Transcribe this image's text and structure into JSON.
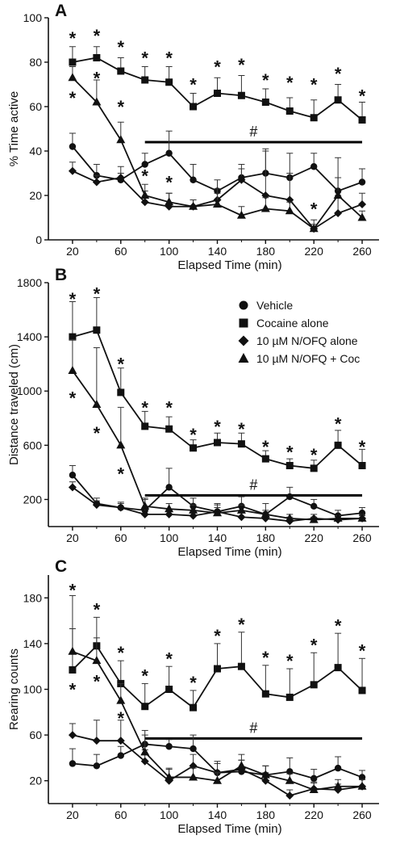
{
  "chart_data": [
    {
      "type": "line",
      "panel_label": "A",
      "xlabel": "Elapsed Time (min)",
      "ylabel": "% Time active",
      "x": [
        20,
        40,
        60,
        80,
        100,
        120,
        140,
        160,
        180,
        200,
        220,
        240,
        260
      ],
      "x_ticks": [
        "20",
        "60",
        "100",
        "140",
        "180",
        "220",
        "260"
      ],
      "y_ticks": [
        "0",
        "20",
        "40",
        "60",
        "80",
        "100"
      ],
      "xlim": [
        0,
        274
      ],
      "ylim": [
        0,
        100
      ],
      "series": [
        {
          "marker": "circle",
          "values": [
            42,
            29,
            27,
            34,
            39,
            27,
            22,
            28,
            30,
            28,
            33,
            22,
            26
          ],
          "errors": [
            6,
            5,
            3,
            5,
            10,
            7,
            5,
            6,
            11,
            11,
            6,
            15,
            6
          ]
        },
        {
          "marker": "square",
          "values": [
            80,
            82,
            76,
            72,
            71,
            60,
            66,
            65,
            62,
            58,
            55,
            63,
            54
          ],
          "errors": [
            7,
            5,
            6,
            6,
            7,
            6,
            7,
            9,
            6,
            6,
            8,
            7,
            8
          ]
        },
        {
          "marker": "diamond",
          "values": [
            31,
            26,
            28,
            17,
            15,
            15,
            18,
            27,
            20,
            18,
            5,
            12,
            16
          ],
          "errors": [
            4,
            3,
            5,
            5,
            6,
            3,
            5,
            5,
            20,
            12,
            4,
            8,
            5
          ]
        },
        {
          "marker": "triangle",
          "values": [
            73,
            62,
            45,
            20,
            17,
            15,
            16,
            11,
            14,
            13,
            5,
            20,
            10
          ],
          "errors": [
            5,
            10,
            8,
            5,
            4,
            3,
            5,
            4,
            5,
            4,
            2,
            8,
            3
          ]
        }
      ],
      "asterisks": [
        {
          "x": 20,
          "y": 91
        },
        {
          "x": 40,
          "y": 92
        },
        {
          "x": 60,
          "y": 87
        },
        {
          "x": 80,
          "y": 82
        },
        {
          "x": 100,
          "y": 82
        },
        {
          "x": 120,
          "y": 70
        },
        {
          "x": 140,
          "y": 78
        },
        {
          "x": 160,
          "y": 79
        },
        {
          "x": 180,
          "y": 72
        },
        {
          "x": 200,
          "y": 71
        },
        {
          "x": 220,
          "y": 70
        },
        {
          "x": 240,
          "y": 75
        },
        {
          "x": 260,
          "y": 65
        },
        {
          "x": 20,
          "y": 64
        },
        {
          "x": 40,
          "y": 73
        },
        {
          "x": 60,
          "y": 60
        },
        {
          "x": 80,
          "y": 29
        },
        {
          "x": 100,
          "y": 26
        },
        {
          "x": 220,
          "y": 14
        }
      ],
      "bar": {
        "x_start": 80,
        "x_end": 260,
        "y": 44,
        "label": "#",
        "label_x": 170
      }
    },
    {
      "type": "line",
      "panel_label": "B",
      "xlabel": "Elapsed Time (min)",
      "ylabel": "Distance traveled (cm)",
      "x": [
        20,
        40,
        60,
        80,
        100,
        120,
        140,
        160,
        180,
        200,
        220,
        240,
        260
      ],
      "x_ticks": [
        "20",
        "60",
        "100",
        "140",
        "180",
        "220",
        "260"
      ],
      "y_ticks": [
        "200",
        "600",
        "1000",
        "1400",
        "1800"
      ],
      "y_tick_values": [
        200,
        600,
        1000,
        1400,
        1800
      ],
      "xlim": [
        0,
        274
      ],
      "ylim": [
        0,
        1800
      ],
      "legend": [
        "Vehicle",
        "Cocaine alone",
        "10 µM N/OFQ alone",
        "10 µM N/OFQ + Coc"
      ],
      "series": [
        {
          "marker": "circle",
          "values": [
            380,
            170,
            140,
            120,
            290,
            150,
            110,
            150,
            90,
            220,
            150,
            80,
            100
          ],
          "errors": [
            70,
            40,
            40,
            80,
            140,
            60,
            60,
            70,
            80,
            70,
            50,
            40,
            40
          ]
        },
        {
          "marker": "square",
          "values": [
            1400,
            1450,
            990,
            740,
            720,
            580,
            620,
            610,
            500,
            450,
            430,
            600,
            450
          ],
          "errors": [
            260,
            240,
            180,
            110,
            90,
            60,
            70,
            80,
            60,
            50,
            60,
            110,
            120
          ]
        },
        {
          "marker": "diamond",
          "values": [
            290,
            160,
            140,
            90,
            90,
            80,
            110,
            70,
            60,
            40,
            60,
            50,
            60
          ],
          "errors": [
            40,
            30,
            30,
            40,
            30,
            30,
            50,
            40,
            40,
            30,
            30,
            30,
            30
          ]
        },
        {
          "marker": "triangle",
          "values": [
            1150,
            900,
            600,
            150,
            130,
            120,
            100,
            120,
            90,
            60,
            50,
            60,
            60
          ],
          "errors": [
            230,
            420,
            280,
            60,
            40,
            40,
            40,
            40,
            30,
            30,
            20,
            20,
            20
          ]
        }
      ],
      "asterisks": [
        {
          "x": 20,
          "y": 1680
        },
        {
          "x": 40,
          "y": 1720
        },
        {
          "x": 60,
          "y": 1200
        },
        {
          "x": 80,
          "y": 880
        },
        {
          "x": 100,
          "y": 880
        },
        {
          "x": 120,
          "y": 680
        },
        {
          "x": 140,
          "y": 740
        },
        {
          "x": 160,
          "y": 720
        },
        {
          "x": 180,
          "y": 590
        },
        {
          "x": 200,
          "y": 550
        },
        {
          "x": 220,
          "y": 530
        },
        {
          "x": 240,
          "y": 760
        },
        {
          "x": 260,
          "y": 590
        },
        {
          "x": 20,
          "y": 950
        },
        {
          "x": 40,
          "y": 690
        },
        {
          "x": 60,
          "y": 390
        }
      ],
      "bar": {
        "x_start": 80,
        "x_end": 260,
        "y": 230,
        "label": "#",
        "label_x": 170
      }
    },
    {
      "type": "line",
      "panel_label": "C",
      "xlabel": "Elapsed Time (min)",
      "ylabel": "Rearing counts",
      "x": [
        20,
        40,
        60,
        80,
        100,
        120,
        140,
        160,
        180,
        200,
        220,
        240,
        260
      ],
      "x_ticks": [
        "20",
        "60",
        "100",
        "140",
        "180",
        "220",
        "260"
      ],
      "y_ticks": [
        "20",
        "60",
        "100",
        "140",
        "180"
      ],
      "y_tick_values": [
        20,
        60,
        100,
        140,
        180
      ],
      "xlim": [
        0,
        274
      ],
      "ylim": [
        0,
        200
      ],
      "series": [
        {
          "marker": "circle",
          "values": [
            35,
            33,
            42,
            52,
            50,
            48,
            27,
            28,
            25,
            28,
            22,
            31,
            23
          ],
          "errors": [
            13,
            10,
            8,
            12,
            6,
            12,
            10,
            10,
            8,
            12,
            8,
            10,
            6
          ]
        },
        {
          "marker": "square",
          "values": [
            117,
            138,
            105,
            85,
            100,
            84,
            118,
            120,
            96,
            93,
            104,
            119,
            99
          ],
          "errors": [
            65,
            25,
            20,
            20,
            20,
            15,
            22,
            30,
            25,
            25,
            28,
            30,
            28
          ]
        },
        {
          "marker": "diamond",
          "values": [
            60,
            55,
            55,
            37,
            20,
            33,
            27,
            30,
            20,
            7,
            13,
            12,
            15
          ],
          "errors": [
            10,
            18,
            18,
            10,
            10,
            10,
            8,
            8,
            7,
            5,
            6,
            5,
            6
          ]
        },
        {
          "marker": "triangle",
          "values": [
            133,
            125,
            90,
            45,
            23,
            23,
            20,
            33,
            25,
            20,
            12,
            15,
            15
          ],
          "errors": [
            20,
            20,
            15,
            15,
            8,
            8,
            7,
            10,
            8,
            6,
            6,
            6,
            6
          ]
        }
      ],
      "asterisks": [
        {
          "x": 20,
          "y": 187
        },
        {
          "x": 40,
          "y": 170
        },
        {
          "x": 60,
          "y": 132
        },
        {
          "x": 80,
          "y": 112
        },
        {
          "x": 100,
          "y": 127
        },
        {
          "x": 120,
          "y": 106
        },
        {
          "x": 140,
          "y": 147
        },
        {
          "x": 160,
          "y": 157
        },
        {
          "x": 180,
          "y": 128
        },
        {
          "x": 200,
          "y": 125
        },
        {
          "x": 220,
          "y": 139
        },
        {
          "x": 240,
          "y": 156
        },
        {
          "x": 260,
          "y": 134
        },
        {
          "x": 20,
          "y": 100
        },
        {
          "x": 40,
          "y": 107
        },
        {
          "x": 60,
          "y": 75
        }
      ],
      "bar": {
        "x_start": 80,
        "x_end": 260,
        "y": 57,
        "label": "#",
        "label_x": 170
      }
    }
  ]
}
